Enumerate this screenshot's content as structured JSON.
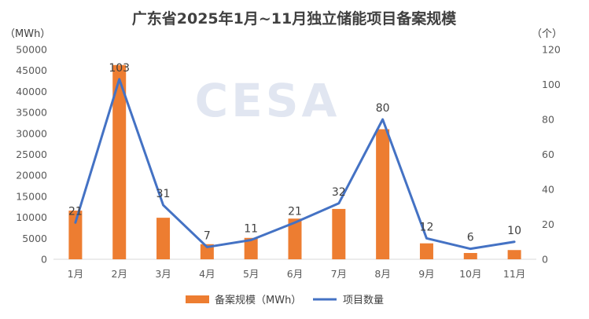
{
  "chart_data": {
    "type": "bar+line",
    "title": "广东省2025年1月~11月独立储能项目备案规模",
    "watermark": "CESA",
    "categories": [
      "1月",
      "2月",
      "3月",
      "4月",
      "5月",
      "6月",
      "7月",
      "8月",
      "9月",
      "10月",
      "11月"
    ],
    "series": [
      {
        "name": "备案规模（MWh）",
        "type": "bar",
        "axis": "left",
        "color": "#ED7D31",
        "values": [
          11600,
          46300,
          9900,
          3600,
          5100,
          9700,
          12000,
          31000,
          3800,
          1500,
          2200
        ]
      },
      {
        "name": "项目数量",
        "type": "line",
        "axis": "right",
        "color": "#4472C4",
        "values": [
          21,
          103,
          31,
          7,
          11,
          21,
          32,
          80,
          12,
          6,
          10
        ],
        "data_labels": [
          "21",
          "103",
          "31",
          "7",
          "11",
          "21",
          "32",
          "80",
          "12",
          "6",
          "10"
        ]
      }
    ],
    "y_left": {
      "label": "（MWh）",
      "ylim": [
        0,
        50000
      ],
      "ticks": [
        0,
        5000,
        10000,
        15000,
        20000,
        25000,
        30000,
        35000,
        40000,
        45000,
        50000
      ]
    },
    "y_right": {
      "label": "（个）",
      "ylim": [
        0,
        120
      ],
      "ticks": [
        0,
        20,
        40,
        60,
        80,
        100,
        120
      ]
    },
    "grid": false,
    "legend": {
      "position": "bottom",
      "entries": [
        "备案规模（MWh）",
        "项目数量"
      ]
    }
  }
}
